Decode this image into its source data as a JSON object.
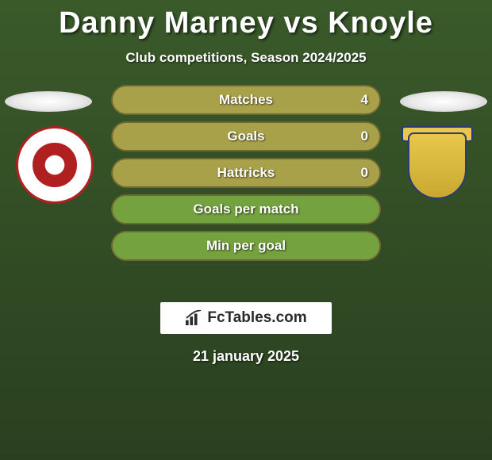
{
  "title": "Danny Marney vs Knoyle",
  "subtitle": "Club competitions, Season 2024/2025",
  "date": "21 january 2025",
  "branding": {
    "text": "FcTables.com"
  },
  "bars": {
    "track_color": "#a9a14a",
    "fill_color": "#74a23e",
    "border_color": "rgba(0,0,0,0.35)",
    "label_fontsize": 17,
    "items": [
      {
        "label": "Matches",
        "left": "",
        "right": "4",
        "fill_pct": 0
      },
      {
        "label": "Goals",
        "left": "",
        "right": "0",
        "fill_pct": 0
      },
      {
        "label": "Hattricks",
        "left": "",
        "right": "0",
        "fill_pct": 0
      },
      {
        "label": "Goals per match",
        "left": "",
        "right": "",
        "fill_pct": 100
      },
      {
        "label": "Min per goal",
        "left": "",
        "right": "",
        "fill_pct": 100
      }
    ]
  },
  "players": {
    "left": {
      "oval_color": "#ffffff"
    },
    "right": {
      "oval_color": "#ffffff"
    }
  },
  "colors": {
    "bg_top": "#3a5a2a",
    "bg_bottom": "#2a3f1f",
    "title_color": "#ffffff"
  }
}
